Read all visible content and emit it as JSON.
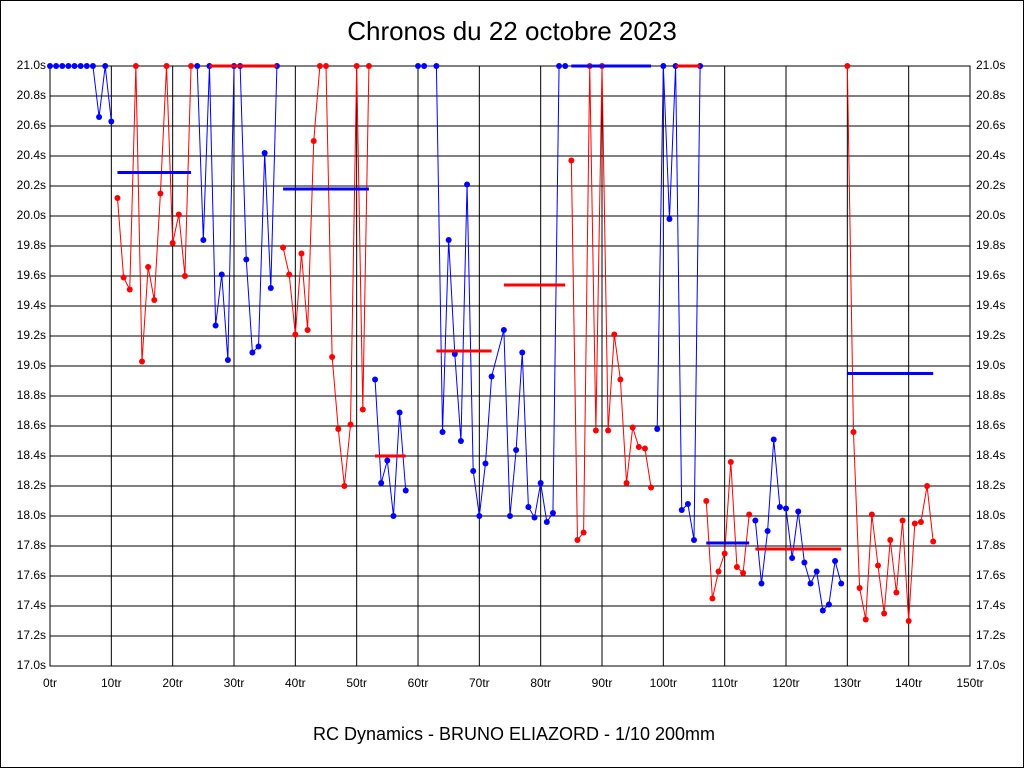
{
  "chart_data": {
    "type": "line",
    "title": "Chronos du 22 octobre 2023",
    "footer": "RC Dynamics - BRUNO ELIAZORD - 1/10 200mm",
    "xlim": [
      0,
      150
    ],
    "xticks": [
      {
        "value": 0,
        "label": "0tr"
      },
      {
        "value": 10,
        "label": "10tr"
      },
      {
        "value": 20,
        "label": "20tr"
      },
      {
        "value": 30,
        "label": "30tr"
      },
      {
        "value": 40,
        "label": "40tr"
      },
      {
        "value": 50,
        "label": "50tr"
      },
      {
        "value": 60,
        "label": "60tr"
      },
      {
        "value": 70,
        "label": "70tr"
      },
      {
        "value": 80,
        "label": "80tr"
      },
      {
        "value": 90,
        "label": "90tr"
      },
      {
        "value": 100,
        "label": "100tr"
      },
      {
        "value": 110,
        "label": "110tr"
      },
      {
        "value": 120,
        "label": "120tr"
      },
      {
        "value": 130,
        "label": "130tr"
      },
      {
        "value": 140,
        "label": "140tr"
      },
      {
        "value": 150,
        "label": "150tr"
      }
    ],
    "ylim": [
      17.0,
      21.0
    ],
    "yticks": [
      {
        "value": 17.0,
        "label": "17.0s"
      },
      {
        "value": 17.2,
        "label": "17.2s"
      },
      {
        "value": 17.4,
        "label": "17.4s"
      },
      {
        "value": 17.6,
        "label": "17.6s"
      },
      {
        "value": 17.8,
        "label": "17.8s"
      },
      {
        "value": 18.0,
        "label": "18.0s"
      },
      {
        "value": 18.2,
        "label": "18.2s"
      },
      {
        "value": 18.4,
        "label": "18.4s"
      },
      {
        "value": 18.6,
        "label": "18.6s"
      },
      {
        "value": 18.8,
        "label": "18.8s"
      },
      {
        "value": 19.0,
        "label": "19.0s"
      },
      {
        "value": 19.2,
        "label": "19.2s"
      },
      {
        "value": 19.4,
        "label": "19.4s"
      },
      {
        "value": 19.6,
        "label": "19.6s"
      },
      {
        "value": 19.8,
        "label": "19.8s"
      },
      {
        "value": 20.0,
        "label": "20.0s"
      },
      {
        "value": 20.2,
        "label": "20.2s"
      },
      {
        "value": 20.4,
        "label": "20.4s"
      },
      {
        "value": 20.6,
        "label": "20.6s"
      },
      {
        "value": 20.8,
        "label": "20.8s"
      },
      {
        "value": 21.0,
        "label": "21.0s"
      }
    ],
    "grid": true,
    "series": [
      {
        "color": "#0000ff",
        "x": [
          0,
          1,
          2,
          3,
          4,
          5,
          6,
          7,
          8,
          9,
          10
        ],
        "values": [
          21.0,
          21.0,
          21.0,
          21.0,
          21.0,
          21.0,
          21.0,
          21.0,
          20.66,
          21.0,
          20.63
        ]
      },
      {
        "color": "#ff0000",
        "x": [
          11,
          12,
          13,
          14,
          15,
          16,
          17,
          18,
          19,
          20,
          21,
          22,
          23
        ],
        "values": [
          20.12,
          19.59,
          19.51,
          21.0,
          19.03,
          19.66,
          19.44,
          20.15,
          21.0,
          19.82,
          20.01,
          19.6,
          21.0
        ]
      },
      {
        "color": "#0000ff",
        "x": [
          24,
          25,
          26,
          27,
          28,
          29,
          30,
          31,
          32,
          33,
          34,
          35,
          36,
          37
        ],
        "values": [
          21.0,
          19.84,
          21.0,
          19.27,
          19.61,
          19.04,
          21.0,
          21.0,
          19.71,
          19.09,
          19.13,
          20.42,
          19.52,
          21.0
        ]
      },
      {
        "color": "#ff0000",
        "x": [
          38,
          39,
          40,
          41,
          42,
          43,
          44,
          45,
          46,
          47,
          48,
          49,
          50,
          51,
          52
        ],
        "values": [
          19.79,
          19.61,
          19.21,
          19.75,
          19.24,
          20.5,
          21.0,
          21.0,
          19.06,
          18.58,
          18.2,
          18.61,
          21.0,
          18.71,
          21.0
        ]
      },
      {
        "color": "#0000ff",
        "x": [
          53,
          54,
          55,
          56,
          57,
          58
        ],
        "values": [
          18.91,
          18.22,
          18.37,
          18.0,
          18.69,
          18.17
        ]
      },
      {
        "color": "#0000ff",
        "x": [
          60,
          61,
          63,
          64,
          65,
          66,
          67,
          68,
          69,
          70,
          71,
          72,
          74,
          75,
          76,
          77,
          78,
          79,
          80,
          81,
          82,
          83,
          84
        ],
        "values": [
          21.0,
          21.0,
          21.0,
          18.56,
          19.84,
          19.08,
          18.5,
          20.21,
          18.3,
          18.0,
          18.35,
          18.93,
          19.24,
          18.0,
          18.44,
          19.09,
          18.06,
          17.99,
          18.22,
          17.96,
          18.02,
          21.0,
          21.0
        ]
      },
      {
        "color": "#ff0000",
        "x": [
          85,
          86,
          87,
          88,
          89,
          90,
          91,
          92,
          93,
          94,
          95,
          96,
          97,
          98
        ],
        "values": [
          20.37,
          17.84,
          17.89,
          21.0,
          18.57,
          21.0,
          18.57,
          19.21,
          18.91,
          18.22,
          18.59,
          18.46,
          18.45,
          18.19
        ]
      },
      {
        "color": "#0000ff",
        "x": [
          99,
          100,
          101,
          102,
          103,
          104,
          105,
          106
        ],
        "values": [
          18.58,
          21.0,
          19.98,
          21.0,
          18.04,
          18.08,
          17.84,
          21.0
        ]
      },
      {
        "color": "#ff0000",
        "x": [
          107,
          108,
          109,
          110,
          111,
          112,
          113,
          114
        ],
        "values": [
          18.1,
          17.45,
          17.63,
          17.75,
          18.36,
          17.66,
          17.62,
          18.01
        ]
      },
      {
        "color": "#0000ff",
        "x": [
          115,
          116,
          117,
          118,
          119,
          120,
          121,
          122,
          123,
          124,
          125,
          126,
          127,
          128,
          129
        ],
        "values": [
          17.97,
          17.55,
          17.9,
          18.51,
          18.06,
          18.05,
          17.72,
          18.03,
          17.69,
          17.55,
          17.63,
          17.37,
          17.41,
          17.7,
          17.55
        ]
      },
      {
        "color": "#ff0000",
        "x": [
          130,
          131,
          132,
          133,
          134,
          135,
          136,
          137,
          138,
          139,
          140,
          141,
          142,
          143,
          144
        ],
        "values": [
          21.0,
          18.56,
          17.52,
          17.31,
          18.01,
          17.67,
          17.35,
          17.84,
          17.49,
          17.97,
          17.3,
          17.95,
          17.96,
          18.2,
          17.83
        ]
      }
    ],
    "averages": [
      {
        "color": "#0000ff",
        "x": [
          11,
          23
        ],
        "value": 20.29
      },
      {
        "color": "#ff0000",
        "x": [
          26,
          37
        ],
        "value": 21.0
      },
      {
        "color": "#0000ff",
        "x": [
          38,
          52
        ],
        "value": 20.18
      },
      {
        "color": "#ff0000",
        "x": [
          53,
          58
        ],
        "value": 18.4
      },
      {
        "color": "#ff0000",
        "x": [
          63,
          72
        ],
        "value": 19.1
      },
      {
        "color": "#ff0000",
        "x": [
          74,
          84
        ],
        "value": 19.54
      },
      {
        "color": "#0000ff",
        "x": [
          85,
          98
        ],
        "value": 21.0
      },
      {
        "color": "#ff0000",
        "x": [
          102,
          106
        ],
        "value": 21.0
      },
      {
        "color": "#0000ff",
        "x": [
          107,
          114
        ],
        "value": 17.82
      },
      {
        "color": "#ff0000",
        "x": [
          115,
          129
        ],
        "value": 17.78
      },
      {
        "color": "#0000ff",
        "x": [
          130,
          144
        ],
        "value": 18.95
      }
    ]
  }
}
